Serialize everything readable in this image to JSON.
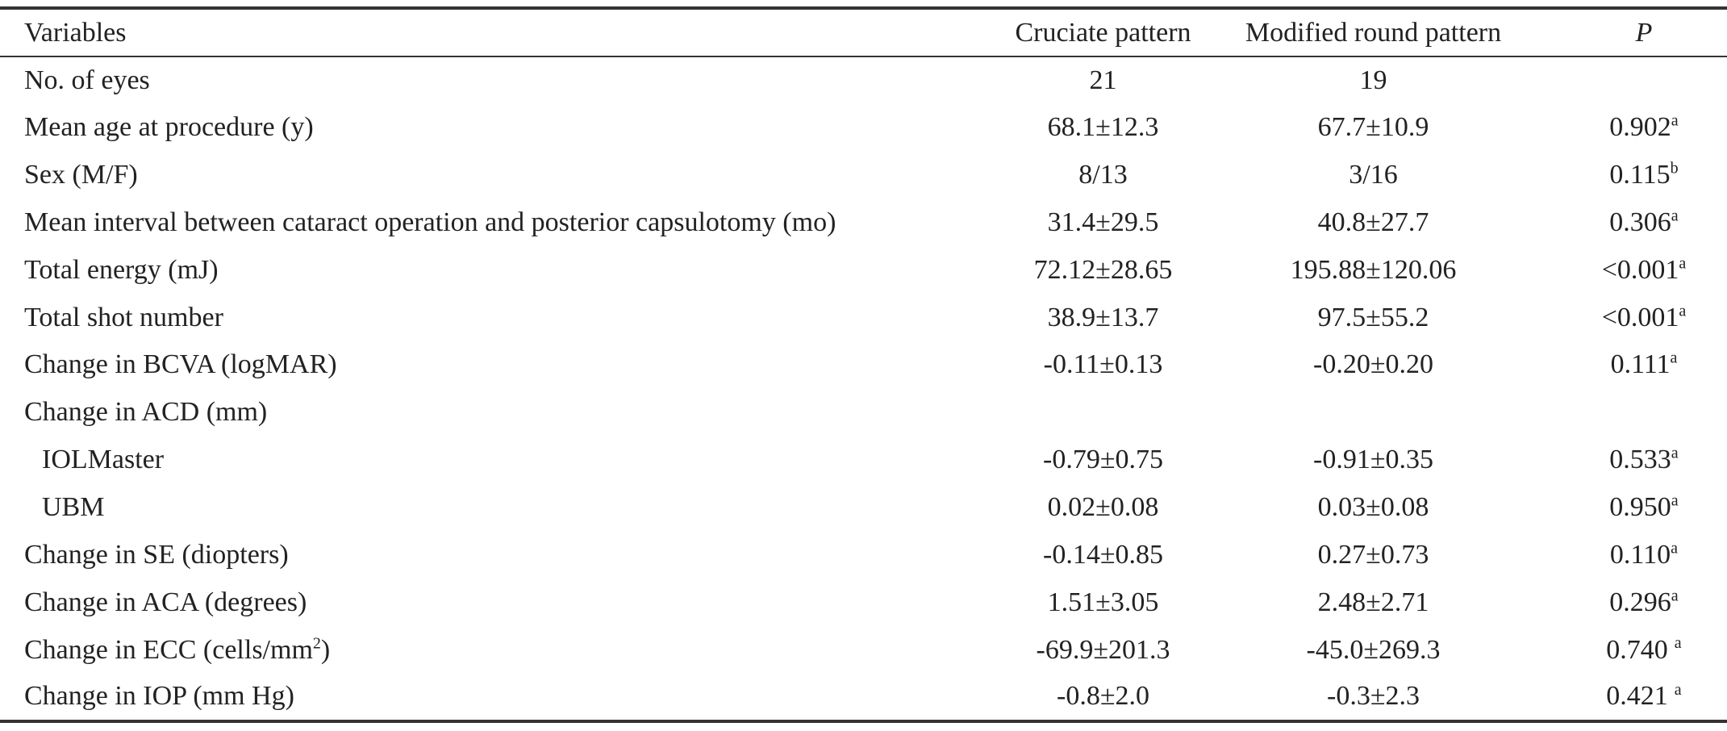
{
  "table": {
    "headers": {
      "variables": "Variables",
      "cruciate": "Cruciate pattern",
      "modified": "Modified round pattern",
      "p": "P"
    },
    "rows": [
      {
        "label": "No. of eyes",
        "cruciate": "21",
        "modified": "19",
        "p": "",
        "p_sup": ""
      },
      {
        "label": "Mean age at procedure (y)",
        "cruciate": "68.1±12.3",
        "modified": "67.7±10.9",
        "p": "0.902",
        "p_sup": "a"
      },
      {
        "label": "Sex (M/F)",
        "cruciate": "8/13",
        "modified": "3/16",
        "p": "0.115",
        "p_sup": "b"
      },
      {
        "label": "Mean interval between cataract operation and posterior capsulotomy (mo)",
        "cruciate": "31.4±29.5",
        "modified": "40.8±27.7",
        "p": "0.306",
        "p_sup": "a"
      },
      {
        "label": "Total energy (mJ)",
        "cruciate": "72.12±28.65",
        "modified": "195.88±120.06",
        "p": "<0.001",
        "p_sup": "a"
      },
      {
        "label": "Total shot number",
        "cruciate": "38.9±13.7",
        "modified": "97.5±55.2",
        "p": "<0.001",
        "p_sup": "a"
      },
      {
        "label": "Change in BCVA (logMAR)",
        "cruciate": "-0.11±0.13",
        "modified": "-0.20±0.20",
        "p": "0.111",
        "p_sup": "a"
      },
      {
        "label": "Change in ACD (mm)",
        "cruciate": "",
        "modified": "",
        "p": "",
        "p_sup": ""
      },
      {
        "label": "IOLMaster",
        "cruciate": "-0.79±0.75",
        "modified": "-0.91±0.35",
        "p": "0.533",
        "p_sup": "a"
      },
      {
        "label": "UBM",
        "cruciate": "0.02±0.08",
        "modified": "0.03±0.08",
        "p": "0.950",
        "p_sup": "a"
      },
      {
        "label": "Change in SE (diopters)",
        "cruciate": "-0.14±0.85",
        "modified": "0.27±0.73",
        "p": "0.110",
        "p_sup": "a"
      },
      {
        "label": "Change in ACA (degrees)",
        "cruciate": "1.51±3.05",
        "modified": "2.48±2.71",
        "p": "0.296",
        "p_sup": "a"
      },
      {
        "label_pre": "Change in ECC (cells/mm",
        "label_sup": "2",
        "label_post": ")",
        "cruciate": "-69.9±201.3",
        "modified": "-45.0±269.3",
        "p": "0.740",
        "p_sup": "a"
      },
      {
        "label": "Change in IOP (mm Hg)",
        "cruciate": "-0.8±2.0",
        "modified": "-0.3±2.3",
        "p": "0.421",
        "p_sup": "a"
      }
    ]
  }
}
